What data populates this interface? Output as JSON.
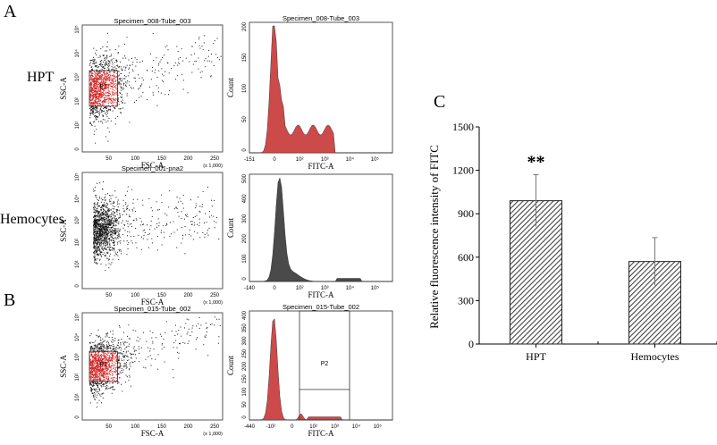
{
  "panels": {
    "A": "A",
    "B": "B",
    "C": "C"
  },
  "row_labels": {
    "hpt": "HPT",
    "hemocytes": "Hemocytes"
  },
  "flow_plots": [
    {
      "id": "A-HPT-scatter",
      "type": "scatter",
      "title": "Specimen_008-Tube_003",
      "xlabel": "FSC-A",
      "ylabel": "SSC-A",
      "x_ticks": [
        "50",
        "100",
        "150",
        "200",
        "250"
      ],
      "x_scale_note": "(x 1,000)",
      "y_ticks": [
        "0",
        "10¹",
        "10²",
        "10³",
        "10⁴",
        "10⁵"
      ],
      "gate": "P1",
      "gate_color": "#d42020",
      "dot_color": "#000000"
    },
    {
      "id": "A-HPT-histogram",
      "type": "histogram",
      "title": "Specimen_008-Tube_003",
      "xlabel": "FITC-A",
      "ylabel": "Count",
      "x_ticks": [
        "-151",
        "0",
        "10²",
        "10³",
        "10⁴",
        "10⁵"
      ],
      "y_ticks": [
        "0",
        "50",
        "100",
        "150",
        "200"
      ],
      "fill_color": "#cd4a4a"
    },
    {
      "id": "A-Hemocytes-scatter",
      "type": "scatter",
      "title": "Specimen_001-pna2",
      "xlabel": "FSC-A",
      "ylabel": "SSC-A",
      "x_ticks": [
        "50",
        "100",
        "150",
        "200",
        "250"
      ],
      "x_scale_note": "(x 1,000)",
      "y_ticks": [
        "0",
        "10¹",
        "10²",
        "10³",
        "10⁴",
        "10⁵"
      ],
      "dot_color": "#000000"
    },
    {
      "id": "A-Hemocytes-histogram",
      "type": "histogram",
      "title": "",
      "xlabel": "FITC-A",
      "ylabel": "Count",
      "x_ticks": [
        "-140",
        "0",
        "10²",
        "10³",
        "10⁴",
        "10⁵"
      ],
      "y_ticks": [
        "0",
        "100",
        "200",
        "300",
        "400",
        "500"
      ],
      "fill_color": "#4a4a4a"
    },
    {
      "id": "B-scatter",
      "type": "scatter",
      "title": "Specimen_015-Tube_002",
      "xlabel": "FSC-A",
      "ylabel": "SSC-A",
      "x_ticks": [
        "50",
        "100",
        "150",
        "200",
        "250"
      ],
      "x_scale_note": "(x 1,000)",
      "y_ticks": [
        "0",
        "10¹",
        "10²",
        "10³",
        "10⁴",
        "10⁵"
      ],
      "gate": "P1",
      "gate_color": "#d42020",
      "dot_color": "#000000"
    },
    {
      "id": "B-histogram",
      "type": "histogram",
      "title": "Specimen_015-Tube_002",
      "xlabel": "FITC-A",
      "ylabel": "Count",
      "x_ticks": [
        "-440",
        "-10²",
        "0",
        "10²",
        "10³",
        "10⁴",
        "10⁵"
      ],
      "y_ticks": [
        "0",
        "50",
        "100",
        "150",
        "200",
        "250",
        "300",
        "350",
        "400"
      ],
      "gate": "P2",
      "fill_color": "#cd4a4a"
    }
  ],
  "chart_data": {
    "type": "bar",
    "title": "",
    "categories": [
      "HPT",
      "Hemocytes"
    ],
    "values": [
      990,
      570
    ],
    "error": [
      180,
      165
    ],
    "annotations": [
      {
        "category": "HPT",
        "text": "**"
      }
    ],
    "xlabel": "",
    "ylabel": "Relative fluorescence intensity of FITC",
    "ylim": [
      0,
      1500
    ],
    "yticks": [
      0,
      300,
      600,
      900,
      1200,
      1500
    ],
    "bar_pattern": "diagonal-hatch",
    "bar_color": "#555555",
    "grid": false
  }
}
